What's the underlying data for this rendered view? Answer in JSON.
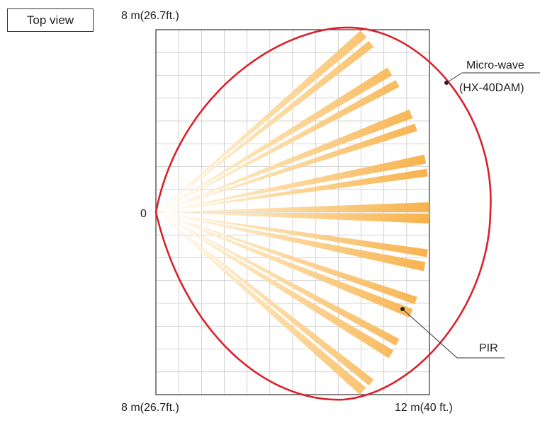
{
  "title": "Top view",
  "labels": {
    "top_left": "8 m(26.7ft.)",
    "bottom_left": "8 m(26.7ft.)",
    "bottom_right": "12 m(40 ft.)",
    "origin": "0",
    "microwave_line1": "Micro-wave",
    "microwave_line2": "(HX-40DAM)",
    "pir": "PIR"
  },
  "colors": {
    "microwave_outline": "#d9212b",
    "pir_beam": "#f7b24c",
    "grid": "#c8c8c8",
    "frame": "#333333"
  },
  "grid": {
    "columns": 12,
    "rows": 16
  },
  "pir_beams": {
    "count": 17,
    "pattern": "paired fan of detection zones"
  }
}
